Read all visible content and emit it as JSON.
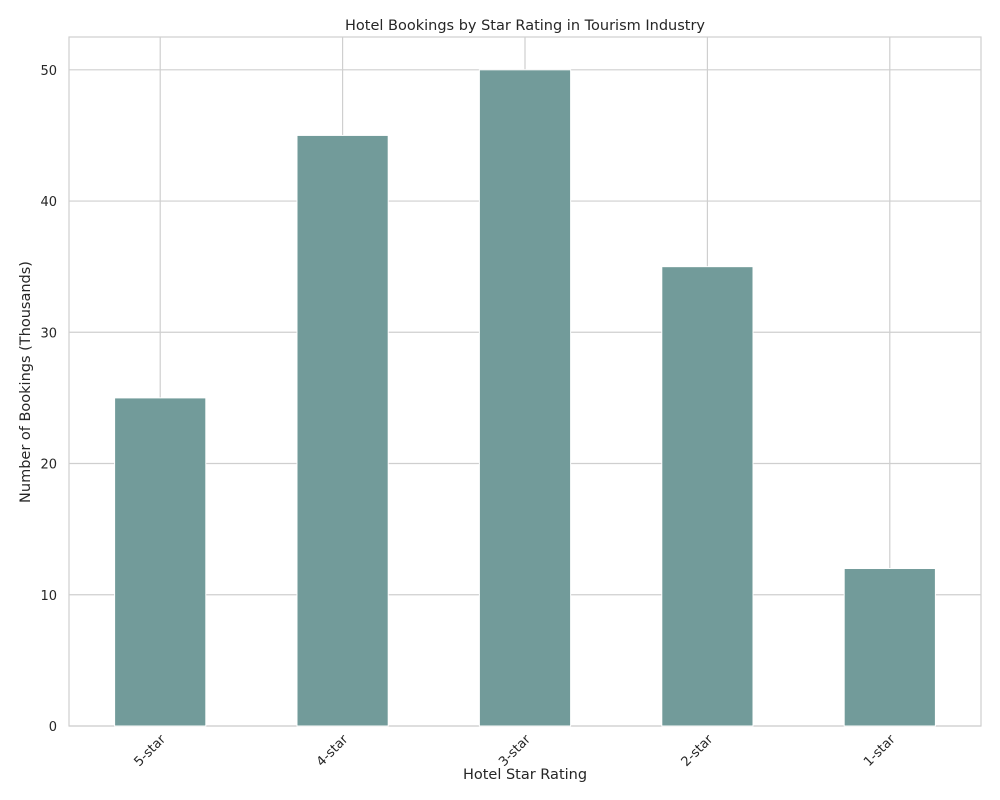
{
  "chart_data": {
    "type": "bar",
    "title": "Hotel Bookings by Star Rating in Tourism Industry",
    "xlabel": "Hotel Star Rating",
    "ylabel": "Number of Bookings (Thousands)",
    "categories": [
      "5-star",
      "4-star",
      "3-star",
      "2-star",
      "1-star"
    ],
    "values": [
      25,
      45,
      50,
      35,
      12
    ],
    "ylim": [
      0,
      52.5
    ],
    "yticks": [
      0,
      10,
      20,
      30,
      40,
      50
    ],
    "grid": true,
    "bar_color": "#729b9a",
    "grid_color": "#cfcfcf"
  }
}
